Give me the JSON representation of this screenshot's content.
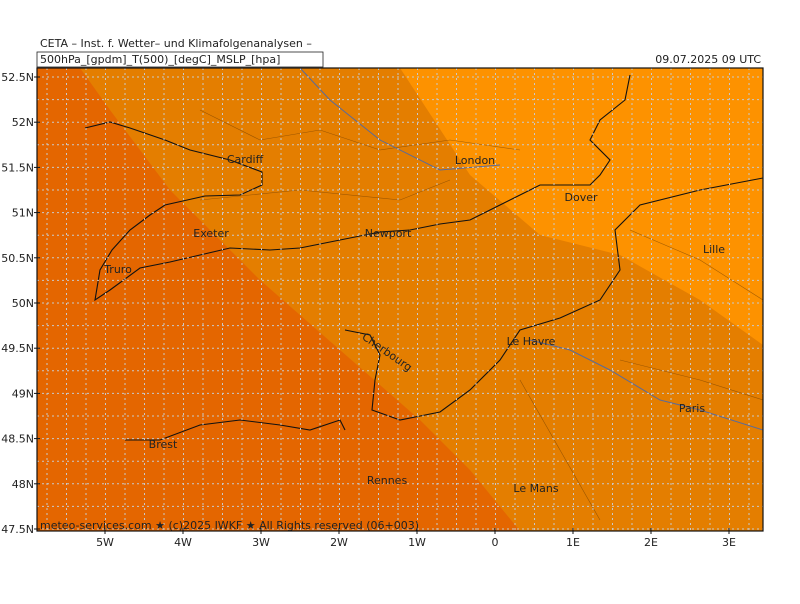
{
  "header": {
    "title": "CETA – Inst. f. Wetter– und Klimafolgenanalysen –",
    "product": "500hPa_[gpdm]_T(500)_[degC]_MSLP_[hpa]",
    "datetime": "09.07.2025 09 UTC"
  },
  "lat_labels": [
    "52.5N",
    "52N",
    "51.5N",
    "51N",
    "50.5N",
    "50N",
    "49.5N",
    "49N",
    "48.5N",
    "48N",
    "47.5N"
  ],
  "lon_labels": [
    "5W",
    "4W",
    "3W",
    "2W",
    "1W",
    "0",
    "1E",
    "2E",
    "3E"
  ],
  "cities": [
    "Cardiff",
    "London",
    "Dover",
    "Exeter",
    "Newport",
    "Lille",
    "Truro",
    "Le Havre",
    "Cherbourg",
    "Paris",
    "Brest",
    "Rennes",
    "Le Mans"
  ],
  "footer": "meteo-services.com ★ (c)2025 IWKF ★ All Rights reserved (06+003)"
}
